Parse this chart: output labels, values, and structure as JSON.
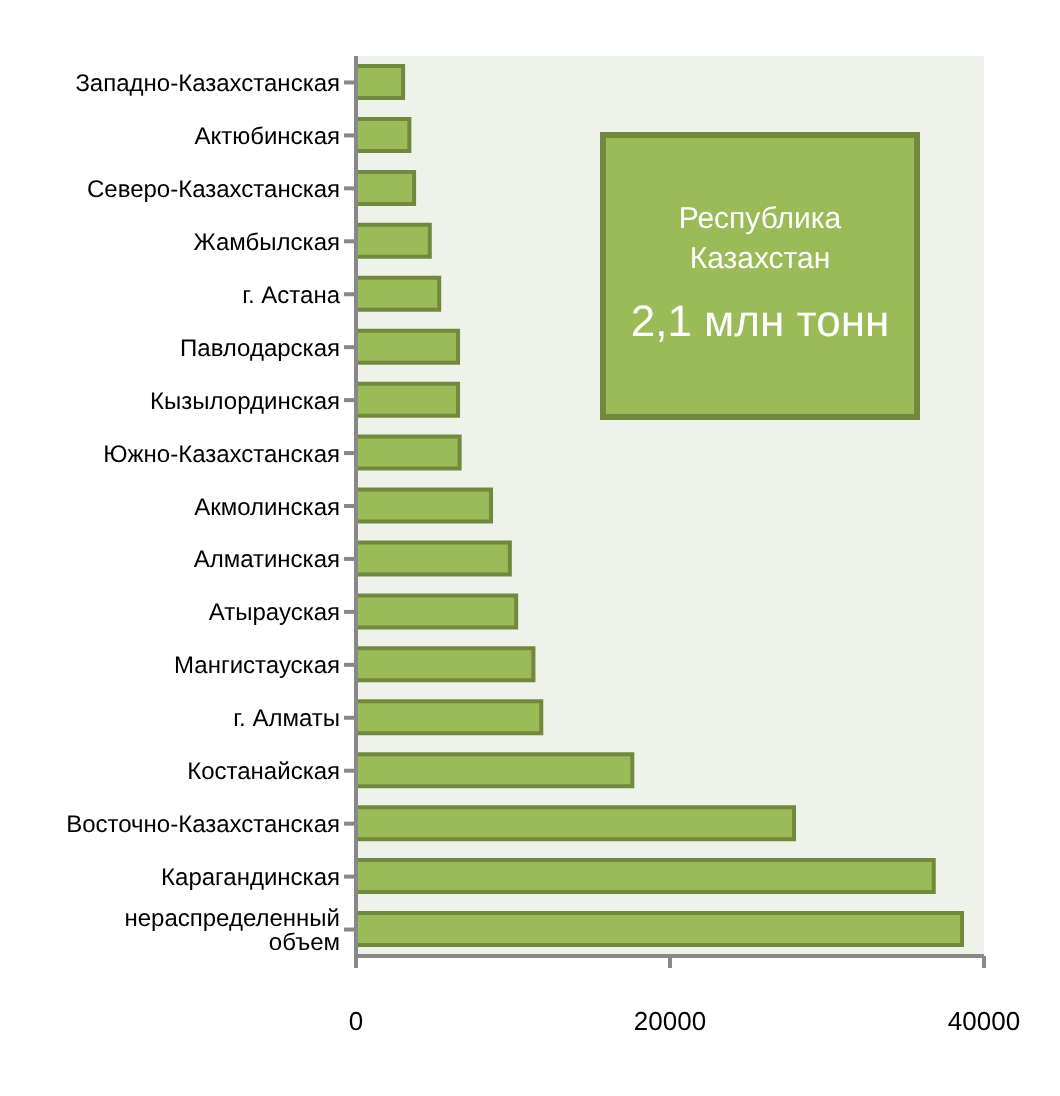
{
  "chart_data": {
    "type": "bar",
    "orientation": "horizontal",
    "categories": [
      "Западно-Казахстанская",
      "Актюбинская",
      "Северо-Казахстанская",
      "Жамбылская",
      "г. Астана",
      "Павлодарская",
      "Кызылординская",
      "Южно-Казахстанская",
      "Акмолинская",
      "Алматинская",
      "Атырауская",
      "Мангистауская",
      "г. Алматы",
      "Костанайская",
      "Восточно-Казахстанская",
      "Карагандинская",
      "нераспределенный объем"
    ],
    "values": [
      3000,
      3400,
      3700,
      4700,
      5300,
      6500,
      6500,
      6600,
      8600,
      9800,
      10200,
      11300,
      11800,
      17600,
      27900,
      36800,
      38600
    ],
    "color": "#9bbb59",
    "xlim": [
      0,
      40000
    ],
    "xticks": [
      0,
      20000,
      40000
    ],
    "annotations": [
      "Республика Казахстан",
      "2,1 млн тонн"
    ],
    "grid": false,
    "legend": false
  }
}
